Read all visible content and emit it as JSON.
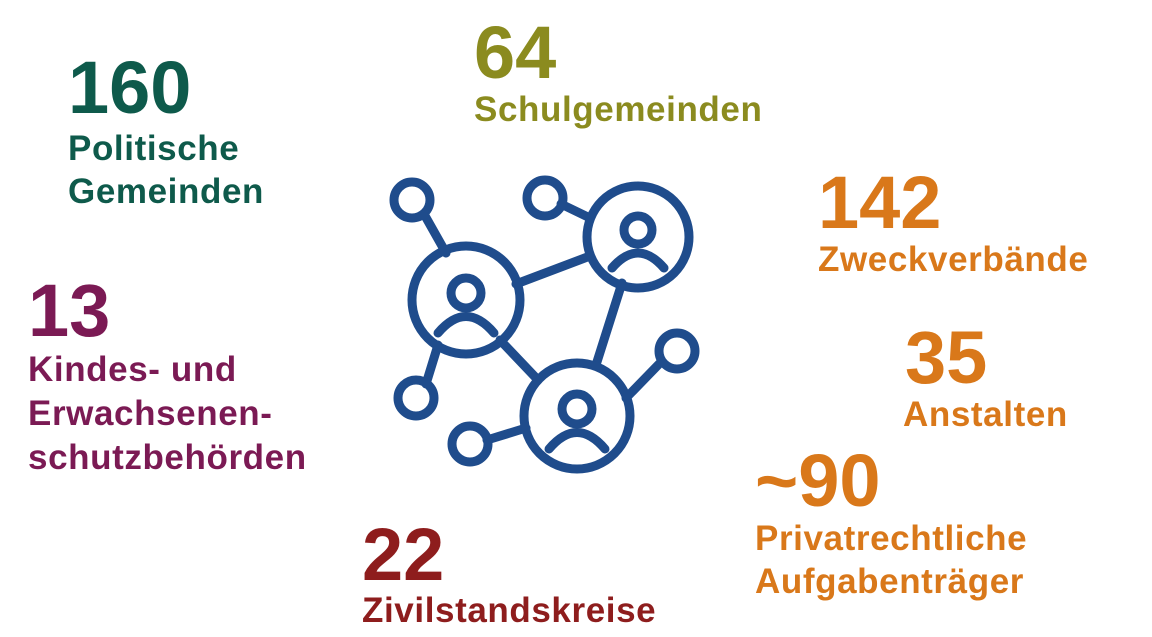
{
  "items": [
    {
      "number": "160",
      "label": [
        "Politische",
        "Gemeinden"
      ]
    },
    {
      "number": "64",
      "label": [
        "Schulgemeinden"
      ]
    },
    {
      "number": "142",
      "label": [
        "Zweckverbände"
      ]
    },
    {
      "number": "13",
      "label": [
        "Kindes- und",
        "Erwachsenen-",
        "schutzbehörden"
      ]
    },
    {
      "number": "35",
      "label": [
        "Anstalten"
      ]
    },
    {
      "number": "~90",
      "label": [
        "Privatrechtliche",
        "Aufgabenträger"
      ]
    },
    {
      "number": "22",
      "label": [
        "Zivilstandskreise"
      ]
    }
  ]
}
